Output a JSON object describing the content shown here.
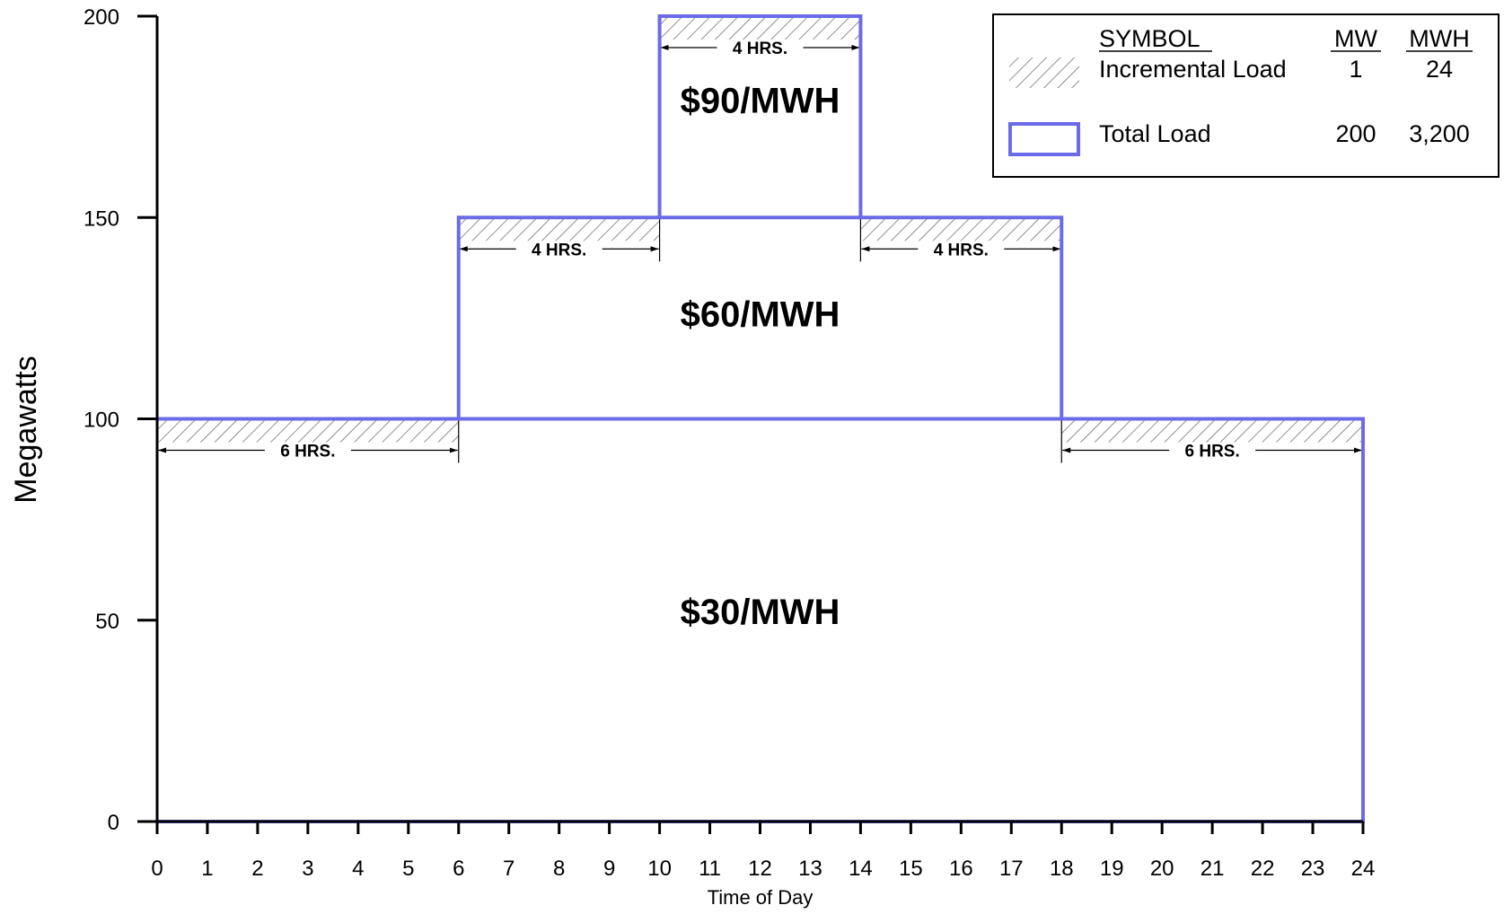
{
  "chart_data": {
    "type": "area",
    "xlabel": "Time of Day",
    "ylabel": "Megawatts",
    "xlim": [
      0,
      24
    ],
    "ylim": [
      0,
      200
    ],
    "x_ticks": [
      0,
      1,
      2,
      3,
      4,
      5,
      6,
      7,
      8,
      9,
      10,
      11,
      12,
      13,
      14,
      15,
      16,
      17,
      18,
      19,
      20,
      21,
      22,
      23,
      24
    ],
    "y_ticks": [
      0,
      50,
      100,
      150,
      200
    ],
    "grid": false,
    "series": [
      {
        "name": "Total Load",
        "color": "#6b6bea",
        "steps": [
          {
            "x_start": 0,
            "x_end": 6,
            "y": 100
          },
          {
            "x_start": 6,
            "x_end": 10,
            "y": 150
          },
          {
            "x_start": 10,
            "x_end": 14,
            "y": 200
          },
          {
            "x_start": 14,
            "x_end": 18,
            "y": 150
          },
          {
            "x_start": 18,
            "x_end": 24,
            "y": 100
          }
        ]
      }
    ],
    "incremental_bands": [
      {
        "x_start": 0,
        "x_end": 6,
        "y_top": 100,
        "label": "6 HRS."
      },
      {
        "x_start": 6,
        "x_end": 10,
        "y_top": 150,
        "label": "4 HRS."
      },
      {
        "x_start": 10,
        "x_end": 14,
        "y_top": 200,
        "label": "4 HRS."
      },
      {
        "x_start": 14,
        "x_end": 18,
        "y_top": 150,
        "label": "4 HRS."
      },
      {
        "x_start": 18,
        "x_end": 24,
        "y_top": 100,
        "label": "6 HRS."
      }
    ],
    "price_labels": [
      {
        "text": "$90/MWH",
        "x": 12,
        "y": 176
      },
      {
        "text": "$60/MWH",
        "x": 12,
        "y": 123
      },
      {
        "text": "$30/MWH",
        "x": 12,
        "y": 49
      }
    ],
    "legend": {
      "position": "top-right",
      "headers": {
        "symbol": "SYMBOL",
        "mw": "MW",
        "mwh": "MWH"
      },
      "rows": [
        {
          "symbol": "hatch",
          "label": "Incremental Load",
          "mw": "1",
          "mwh": "24"
        },
        {
          "symbol": "box",
          "label": "Total Load",
          "mw": "200",
          "mwh": "3,200"
        }
      ]
    }
  }
}
